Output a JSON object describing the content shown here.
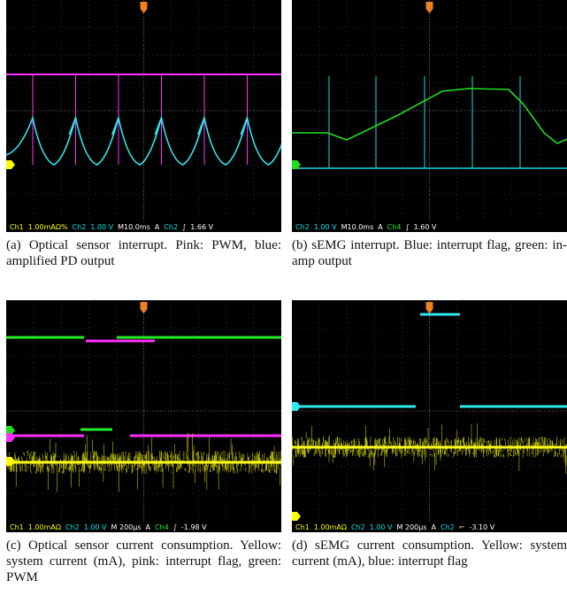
{
  "panels": [
    {
      "caption": "(a) Optical sensor interrupt. Pink: PWM, blue: amplified PD output",
      "status": [
        {
          "text": "Ch1",
          "color": "#ffff00"
        },
        {
          "text": "1.00mAΩ%",
          "color": "#ffff00"
        },
        {
          "text": "Ch2",
          "color": "#00e5ee"
        },
        {
          "text": "1.00 V",
          "color": "#00e5ee"
        },
        {
          "text": "M10.0ms",
          "color": "#ffffff"
        },
        {
          "text": "A",
          "color": "#ffffff"
        },
        {
          "text": "Ch2",
          "color": "#00e5ee"
        },
        {
          "text": "∫",
          "color": "#ffffff"
        },
        {
          "text": "1.66 V",
          "color": "#ffffff"
        }
      ]
    },
    {
      "caption": "(b) sEMG interrupt. Blue: interrupt flag, green: in-amp output",
      "status": [
        {
          "text": "Ch2",
          "color": "#00e5ee"
        },
        {
          "text": "1.00 V",
          "color": "#00e5ee"
        },
        {
          "text": "M10.0ms",
          "color": "#ffffff"
        },
        {
          "text": "A",
          "color": "#ffffff"
        },
        {
          "text": "Ch4",
          "color": "#22ee22"
        },
        {
          "text": "∫",
          "color": "#ffffff"
        },
        {
          "text": "1.60 V",
          "color": "#ffffff"
        }
      ]
    },
    {
      "caption": "(c) Optical sensor current consumption. Yellow: system current (mA), pink: interrupt flag, green: PWM",
      "status": [
        {
          "text": "Ch1",
          "color": "#ffff00"
        },
        {
          "text": "1.00mAΩ",
          "color": "#ffff00"
        },
        {
          "text": "Ch2",
          "color": "#00e5ee"
        },
        {
          "text": "1.00 V",
          "color": "#00e5ee"
        },
        {
          "text": "M 200µs",
          "color": "#ffffff"
        },
        {
          "text": "A",
          "color": "#ffffff"
        },
        {
          "text": "Ch4",
          "color": "#22ee22"
        },
        {
          "text": "∫",
          "color": "#ffffff"
        },
        {
          "text": "-1.98 V",
          "color": "#ffffff"
        }
      ]
    },
    {
      "caption": "(d) sEMG current consumption. Yellow: system current (mA), blue: interrupt flag",
      "status": [
        {
          "text": "Ch1",
          "color": "#ffff00"
        },
        {
          "text": "1.00mAΩ",
          "color": "#ffff00"
        },
        {
          "text": "Ch2",
          "color": "#00e5ee"
        },
        {
          "text": "1.00 V",
          "color": "#00e5ee"
        },
        {
          "text": "M 200µs",
          "color": "#ffffff"
        },
        {
          "text": "A",
          "color": "#ffffff"
        },
        {
          "text": "Ch2",
          "color": "#00e5ee"
        },
        {
          "text": "⌐",
          "color": "#ffffff"
        },
        {
          "text": "-3.10 V",
          "color": "#ffffff"
        }
      ]
    }
  ]
}
